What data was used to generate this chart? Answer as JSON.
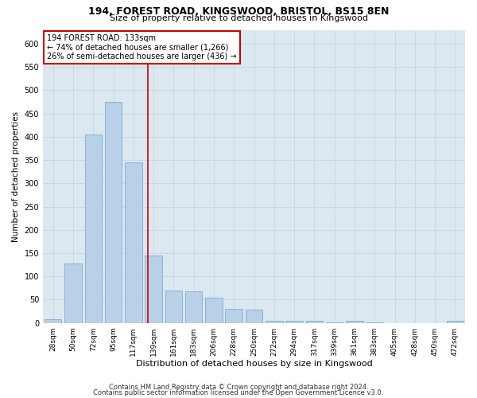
{
  "title1": "194, FOREST ROAD, KINGSWOOD, BRISTOL, BS15 8EN",
  "title2": "Size of property relative to detached houses in Kingswood",
  "xlabel": "Distribution of detached houses by size in Kingswood",
  "ylabel": "Number of detached properties",
  "categories": [
    "28sqm",
    "50sqm",
    "72sqm",
    "95sqm",
    "117sqm",
    "139sqm",
    "161sqm",
    "183sqm",
    "206sqm",
    "228sqm",
    "250sqm",
    "272sqm",
    "294sqm",
    "317sqm",
    "339sqm",
    "361sqm",
    "383sqm",
    "405sqm",
    "428sqm",
    "450sqm",
    "472sqm"
  ],
  "values": [
    8,
    128,
    405,
    475,
    345,
    145,
    70,
    68,
    55,
    30,
    28,
    5,
    5,
    5,
    1,
    5,
    1,
    0,
    0,
    0,
    5
  ],
  "bar_color": "#b8d0e8",
  "bar_edge_color": "#7aaed0",
  "marker_line_color": "#cc0000",
  "annotation_line1": "194 FOREST ROAD: 133sqm",
  "annotation_line2": "← 74% of detached houses are smaller (1,266)",
  "annotation_line3": "26% of semi-detached houses are larger (436) →",
  "annotation_box_color": "#ffffff",
  "annotation_box_edge": "#cc0000",
  "grid_color": "#c8d4e8",
  "bg_color": "#dce8f0",
  "footer1": "Contains HM Land Registry data © Crown copyright and database right 2024.",
  "footer2": "Contains public sector information licensed under the Open Government Licence v3.0.",
  "ylim": [
    0,
    630
  ],
  "yticks": [
    0,
    50,
    100,
    150,
    200,
    250,
    300,
    350,
    400,
    450,
    500,
    550,
    600
  ]
}
